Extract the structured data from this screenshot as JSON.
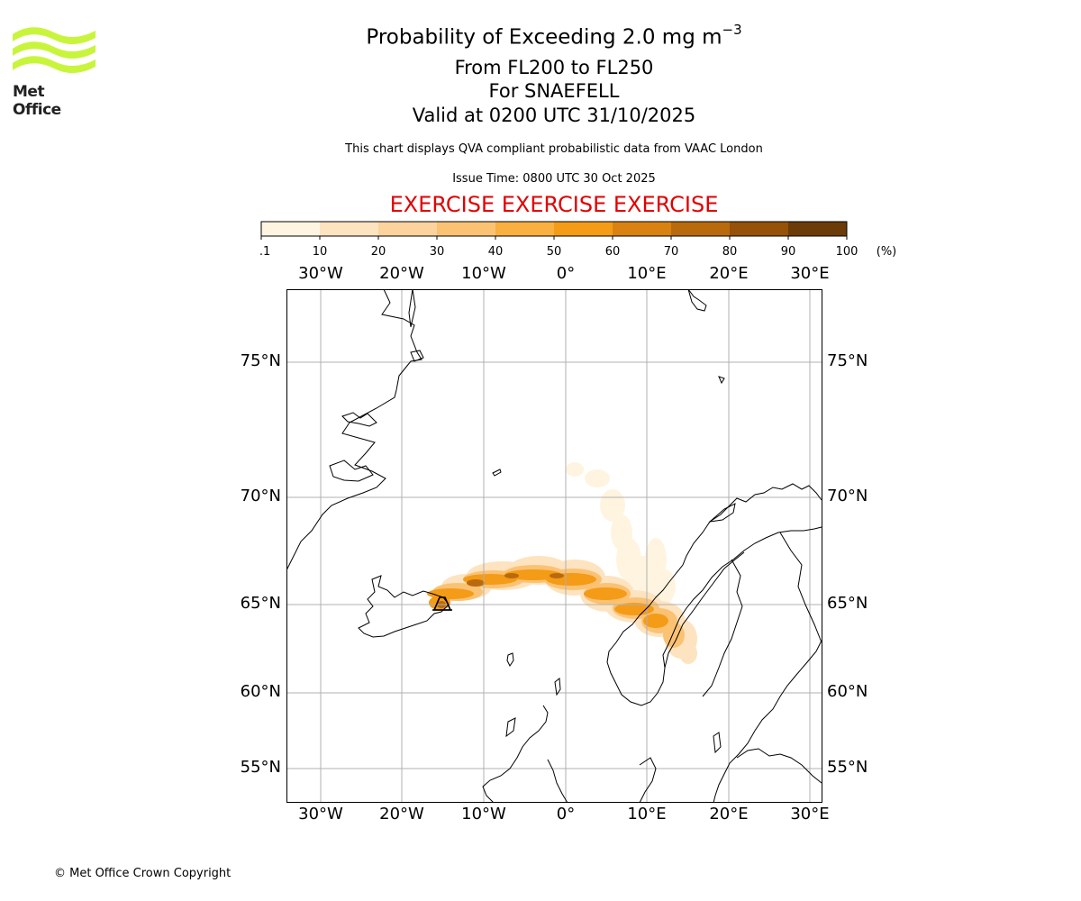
{
  "header": {
    "title_main": "Probability of Exceeding 2.0 mg m",
    "title_superscript": "−3",
    "flight_levels": "From FL200 to FL250",
    "volcano": "For SNAEFELL",
    "valid_time": "Valid at 0200 UTC 31/10/2025",
    "note": "This chart displays QVA compliant probabilistic data from VAAC London",
    "issue_time": "Issue Time: 0800 UTC 30 Oct 2025",
    "exercise": "EXERCISE EXERCISE EXERCISE",
    "exercise_color": "#e30000"
  },
  "logo": {
    "name": "Met Office",
    "color": "#c8f53b",
    "text_color": "#222222"
  },
  "colorbar": {
    "bounds": [
      "0.1",
      "10",
      "20",
      "30",
      "40",
      "50",
      "60",
      "70",
      "80",
      "90",
      "100"
    ],
    "unit": "(%)",
    "colors": [
      "#fff4e0",
      "#fde3bf",
      "#fcd29d",
      "#fbc274",
      "#f9b040",
      "#f49b17",
      "#d98212",
      "#b86a0c",
      "#965208",
      "#6b3b08"
    ]
  },
  "map": {
    "projection": "stereographic",
    "lon_labels": [
      "30°W",
      "20°W",
      "10°W",
      "0°",
      "10°E",
      "20°E",
      "30°E"
    ],
    "lat_labels": [
      "75°N",
      "70°N",
      "65°N",
      "60°N",
      "55°N"
    ],
    "source_volcano": "SNAEFELL",
    "volcano_marker": "volcano-icon",
    "grid": true,
    "coastline_color": "#000000",
    "gridline_color": "#b0b0b0"
  },
  "footer": {
    "copyright": "© Met Office Crown Copyright"
  }
}
